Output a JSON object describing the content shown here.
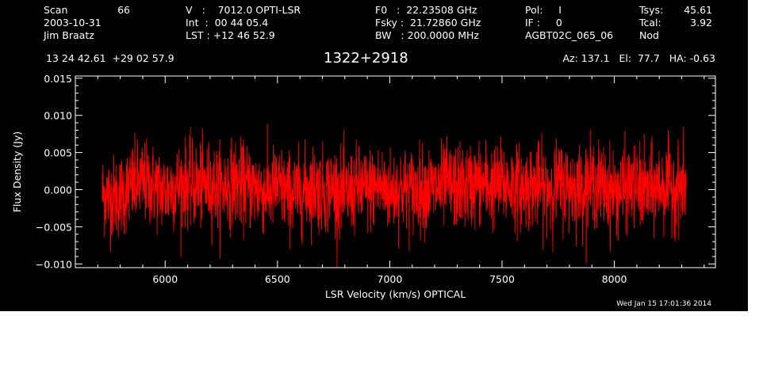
{
  "header": {
    "scan_label": "Scan",
    "scan_value": "66",
    "date": "2003-10-31",
    "observer": "Jim Braatz",
    "velocity": "V   :    7012.0 OPTI-LSR",
    "int": "Int  :  00 44 05.4",
    "lst": "LST : +12 46 52.9",
    "f0": "F0   :  22.23508 GHz",
    "fsky": "Fsky :  21.72860 GHz",
    "bw": "BW   : 200.0000 MHz",
    "pol": "Pol:     I",
    "if": "IF :     0",
    "project": "AGBT02C_065_06",
    "tsys_label": "Tsys:",
    "tsys_value": "45.61",
    "tcal_label": "Tcal:",
    "tcal_value": "3.92",
    "mode": "Nod",
    "coords": "13 24 42.61  +29 02 57.9",
    "source": "1322+2918",
    "azelha": "Az: 137.1   El:  77.7   HA: -0.63"
  },
  "footer": {
    "date": "Wed Jan 15 17:01:36 2014"
  },
  "chart_data": {
    "type": "line",
    "title": "1322+2918",
    "xlabel": "LSR Velocity (km/s) OPTICAL",
    "ylabel": "Flux Density (Jy)",
    "xlim": [
      5600,
      8450
    ],
    "ylim": [
      -0.0105,
      0.0153
    ],
    "xticks": [
      6000,
      6500,
      7000,
      7500,
      8000
    ],
    "xtick_labels": [
      "6000",
      "6500",
      "7000",
      "7500",
      "8000"
    ],
    "yticks": [
      -0.01,
      -0.005,
      0.0,
      0.005,
      0.01,
      0.015
    ],
    "ytick_labels": [
      "−0.010",
      "−0.005",
      "0.000",
      "0.005",
      "0.010",
      "0.015"
    ],
    "grid": false,
    "series": [
      {
        "color": "#ff0000",
        "x_start": 5720,
        "x_end": 8320,
        "x": [
          5720,
          5760,
          5800,
          5850,
          5900,
          5950,
          6000,
          6050,
          6100,
          6150,
          6200,
          6250,
          6300,
          6350,
          6400,
          6450,
          6500,
          6550,
          6600,
          6650,
          6700,
          6750,
          6800,
          6850,
          6900,
          6950,
          7000,
          7050,
          7100,
          7150,
          7200,
          7250,
          7300,
          7350,
          7400,
          7450,
          7500,
          7550,
          7600,
          7650,
          7700,
          7750,
          7800,
          7850,
          7900,
          7950,
          8000,
          8050,
          8100,
          8150,
          8200,
          8250,
          8320
        ],
        "y": [
          -0.0005,
          -0.001,
          -0.0008,
          0.0005,
          0.001,
          0.0005,
          -0.0003,
          0.0006,
          0.0009,
          0.0004,
          0.0007,
          0.0002,
          0.001,
          0.0005,
          0.0003,
          -0.0003,
          0.0004,
          -0.0006,
          -0.0004,
          0.0005,
          -0.0002,
          0.0003,
          -0.0008,
          0.0002,
          -0.0001,
          0.0005,
          -0.0003,
          0.0002,
          -0.0002,
          0.0002,
          0.0001,
          0.0006,
          0.0003,
          0.0004,
          0.001,
          0.0004,
          0.0008,
          0.0005,
          0.0002,
          0.0006,
          0.0001,
          0.0007,
          0.0004,
          0.0002,
          0.0009,
          0.0005,
          -0.0004,
          0.0003,
          0.0004,
          -0.0004,
          0.0006,
          0.0004,
          0.0004
        ],
        "noise_rms": 0.0028
      }
    ]
  }
}
